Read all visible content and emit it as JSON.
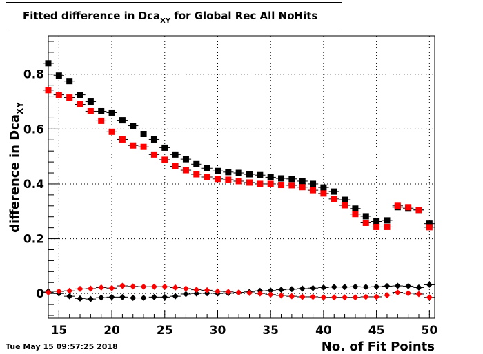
{
  "header": {
    "title_main": "Fitted difference in Dca",
    "title_sub": "XY",
    "title_rest": " for Global Rec All NoHits"
  },
  "footer": {
    "timestamp": "Tue May 15 09:57:25 2018"
  },
  "chart_data": {
    "type": "scatter",
    "title": "Fitted difference in Dca_XY for Global Rec All NoHits",
    "xlabel": "No. of Fit Points",
    "ylabel": "difference in Dca",
    "ylabel_sub": "XY",
    "xlim": [
      14,
      50.5
    ],
    "ylim": [
      -0.09,
      0.94
    ],
    "xticks": [
      15,
      20,
      25,
      30,
      35,
      40,
      45,
      50
    ],
    "yticks": [
      0,
      0.2,
      0.4,
      0.6,
      0.8
    ],
    "grid": true,
    "series": [
      {
        "color": "#000000",
        "marker": "square",
        "x": [
          14,
          15,
          16,
          17,
          18,
          19,
          20,
          21,
          22,
          23,
          24,
          25,
          26,
          27,
          28,
          29,
          30,
          31,
          32,
          33,
          34,
          35,
          36,
          37,
          38,
          39,
          40,
          41,
          42,
          43,
          44,
          45,
          46,
          47,
          48,
          49,
          50
        ],
        "y": [
          0.84,
          0.795,
          0.775,
          0.725,
          0.7,
          0.665,
          0.66,
          0.632,
          0.612,
          0.582,
          0.562,
          0.532,
          0.507,
          0.49,
          0.472,
          0.457,
          0.447,
          0.443,
          0.44,
          0.435,
          0.432,
          0.424,
          0.42,
          0.418,
          0.41,
          0.4,
          0.387,
          0.372,
          0.342,
          0.31,
          0.282,
          0.263,
          0.267,
          0.315,
          0.31,
          0.305,
          0.255
        ]
      },
      {
        "color": "#ff0000",
        "marker": "square",
        "x": [
          14,
          15,
          16,
          17,
          18,
          19,
          20,
          21,
          22,
          23,
          24,
          25,
          26,
          27,
          28,
          29,
          30,
          31,
          32,
          33,
          34,
          35,
          36,
          37,
          38,
          39,
          40,
          41,
          42,
          43,
          44,
          45,
          46,
          47,
          48,
          49,
          50
        ],
        "y": [
          0.742,
          0.725,
          0.715,
          0.69,
          0.665,
          0.63,
          0.59,
          0.562,
          0.54,
          0.535,
          0.507,
          0.488,
          0.464,
          0.45,
          0.435,
          0.425,
          0.418,
          0.415,
          0.41,
          0.405,
          0.4,
          0.4,
          0.396,
          0.395,
          0.388,
          0.377,
          0.365,
          0.345,
          0.322,
          0.29,
          0.258,
          0.243,
          0.243,
          0.32,
          0.315,
          0.305,
          0.242
        ]
      },
      {
        "color": "#000000",
        "marker": "diamond",
        "x": [
          14,
          15,
          16,
          17,
          18,
          19,
          20,
          21,
          22,
          23,
          24,
          25,
          26,
          27,
          28,
          29,
          30,
          31,
          32,
          33,
          34,
          35,
          36,
          37,
          38,
          39,
          40,
          41,
          42,
          43,
          44,
          45,
          46,
          47,
          48,
          49,
          50
        ],
        "y": [
          0.008,
          0.0,
          -0.01,
          -0.018,
          -0.02,
          -0.015,
          -0.013,
          -0.013,
          -0.016,
          -0.016,
          -0.013,
          -0.013,
          -0.01,
          -0.002,
          0.0,
          0.001,
          0.0,
          0.001,
          0.004,
          0.006,
          0.01,
          0.011,
          0.014,
          0.016,
          0.018,
          0.02,
          0.022,
          0.024,
          0.024,
          0.025,
          0.024,
          0.025,
          0.027,
          0.028,
          0.027,
          0.022,
          0.032
        ]
      },
      {
        "color": "#ff0000",
        "marker": "diamond",
        "x": [
          14,
          15,
          16,
          17,
          18,
          19,
          20,
          21,
          22,
          23,
          24,
          25,
          26,
          27,
          28,
          29,
          30,
          31,
          32,
          33,
          34,
          35,
          36,
          37,
          38,
          39,
          40,
          41,
          42,
          43,
          44,
          45,
          46,
          47,
          48,
          49,
          50
        ],
        "y": [
          0.004,
          0.008,
          0.01,
          0.017,
          0.018,
          0.022,
          0.02,
          0.028,
          0.026,
          0.025,
          0.025,
          0.025,
          0.022,
          0.018,
          0.014,
          0.012,
          0.008,
          0.006,
          0.004,
          0.002,
          0.0,
          -0.004,
          -0.007,
          -0.01,
          -0.012,
          -0.012,
          -0.014,
          -0.014,
          -0.014,
          -0.014,
          -0.012,
          -0.012,
          -0.006,
          0.004,
          0.001,
          -0.002,
          -0.014
        ]
      }
    ]
  }
}
